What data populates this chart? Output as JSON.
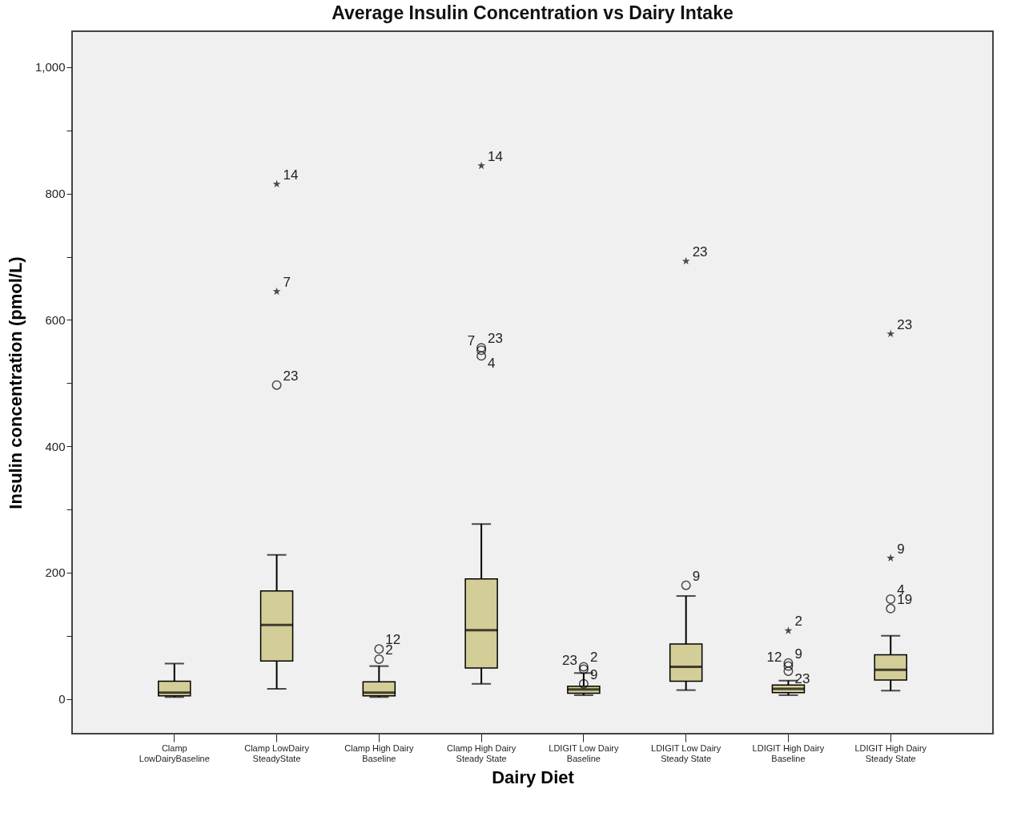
{
  "chart_data": {
    "type": "box",
    "title": "Average Insulin Concentration vs Dairy Intake",
    "xlabel": "Dairy Diet",
    "ylabel": "Insulin concentration (pmol/L)",
    "categories": [
      "Clamp LowDairyBaseline",
      "Clamp LowDairy SteadyState",
      "Clamp High Dairy Baseline",
      "Clamp High Dairy Steady State",
      "LDIGIT Low Dairy Baseline",
      "LDIGIT Low Dairy Steady State",
      "LDIGIT High Dairy Baseline",
      "LDIGIT High Dairy Steady State"
    ],
    "ylim": [
      -55,
      1057
    ],
    "yticks": [
      0,
      {
        "value": 100,
        "label": null
      },
      200,
      {
        "value": 300,
        "label": null
      },
      400,
      {
        "value": 500,
        "label": null
      },
      600,
      {
        "value": 700,
        "label": null
      },
      800,
      {
        "value": 900,
        "label": null
      },
      {
        "value": 1000,
        "label": "1,000"
      }
    ],
    "series": [
      {
        "color": "#d3cd97",
        "boxes": [
          {
            "low": 3,
            "q1": 5,
            "median": 10,
            "q3": 28,
            "high": 56
          },
          {
            "low": 16,
            "q1": 60,
            "median": 117,
            "q3": 171,
            "high": 228
          },
          {
            "low": 3,
            "q1": 5,
            "median": 10,
            "q3": 27,
            "high": 52
          },
          {
            "low": 24,
            "q1": 49,
            "median": 109,
            "q3": 190,
            "high": 277
          },
          {
            "low": 6,
            "q1": 9,
            "median": 15,
            "q3": 20,
            "high": 41
          },
          {
            "low": 14,
            "q1": 28,
            "median": 51,
            "q3": 87,
            "high": 163
          },
          {
            "low": 6,
            "q1": 10,
            "median": 16,
            "q3": 22,
            "high": 29
          },
          {
            "low": 13,
            "q1": 30,
            "median": 46,
            "q3": 70,
            "high": 100
          }
        ]
      },
      {
        "type": "scatter",
        "marker": "circle",
        "color": "#000000",
        "x": [
          "Clamp LowDairy SteadyState",
          "Clamp High Dairy Baseline",
          "Clamp High Dairy Baseline",
          "Clamp High Dairy Steady State",
          "Clamp High Dairy Steady State",
          "Clamp High Dairy Steady State",
          "LDIGIT Low Dairy Baseline",
          "LDIGIT Low Dairy Baseline",
          "LDIGIT Low Dairy Baseline",
          "LDIGIT Low Dairy Steady State",
          "LDIGIT High Dairy Baseline",
          "LDIGIT High Dairy Baseline",
          "LDIGIT High Dairy Baseline",
          "LDIGIT High Dairy Steady State",
          "LDIGIT High Dairy Steady State"
        ],
        "values": [
          497,
          79,
          63,
          556,
          552,
          543,
          51,
          47,
          24,
          180,
          57,
          52,
          44,
          158,
          143
        ]
      },
      {
        "type": "scatter",
        "marker": "star",
        "color": "#000000",
        "x": [
          "Clamp LowDairy SteadyState",
          "Clamp LowDairy SteadyState",
          "Clamp High Dairy Steady State",
          "LDIGIT Low Dairy Steady State",
          "LDIGIT High Dairy Baseline",
          "LDIGIT High Dairy Steady State",
          "LDIGIT High Dairy Steady State"
        ],
        "values": [
          815,
          645,
          844,
          693,
          108,
          223,
          578
        ]
      }
    ],
    "annotations": [
      {
        "text": "14",
        "x": "Clamp LowDairy SteadyState",
        "y": 815
      },
      {
        "text": "7",
        "x": "Clamp LowDairy SteadyState",
        "y": 645
      },
      {
        "text": "23",
        "x": "Clamp LowDairy SteadyState",
        "y": 497
      },
      {
        "text": "12",
        "x": "Clamp High Dairy Baseline",
        "y": 79
      },
      {
        "text": "2",
        "x": "Clamp High Dairy Baseline",
        "y": 63
      },
      {
        "text": "14",
        "x": "Clamp High Dairy Steady State",
        "y": 844
      },
      {
        "text": "23",
        "x": "Clamp High Dairy Steady State",
        "y": 556
      },
      {
        "text": "7",
        "x": "Clamp High Dairy Steady State",
        "y": 552
      },
      {
        "text": "4",
        "x": "Clamp High Dairy Steady State",
        "y": 543
      },
      {
        "text": "2",
        "x": "LDIGIT Low Dairy Baseline",
        "y": 51
      },
      {
        "text": "23",
        "x": "LDIGIT Low Dairy Baseline",
        "y": 47
      },
      {
        "text": "9",
        "x": "LDIGIT Low Dairy Baseline",
        "y": 24
      },
      {
        "text": "9",
        "x": "LDIGIT Low Dairy Steady State",
        "y": 180
      },
      {
        "text": "23",
        "x": "LDIGIT Low Dairy Steady State",
        "y": 693
      },
      {
        "text": "2",
        "x": "LDIGIT High Dairy Baseline",
        "y": 108
      },
      {
        "text": "9",
        "x": "LDIGIT High Dairy Baseline",
        "y": 57
      },
      {
        "text": "12",
        "x": "LDIGIT High Dairy Baseline",
        "y": 52
      },
      {
        "text": "23",
        "x": "LDIGIT High Dairy Baseline",
        "y": 44
      },
      {
        "text": "9",
        "x": "LDIGIT High Dairy Steady State",
        "y": 223
      },
      {
        "text": "4",
        "x": "LDIGIT High Dairy Steady State",
        "y": 158
      },
      {
        "text": "19",
        "x": "LDIGIT High Dairy Steady State",
        "y": 143
      },
      {
        "text": "23",
        "x": "LDIGIT High Dairy Steady State",
        "y": 578
      }
    ]
  }
}
